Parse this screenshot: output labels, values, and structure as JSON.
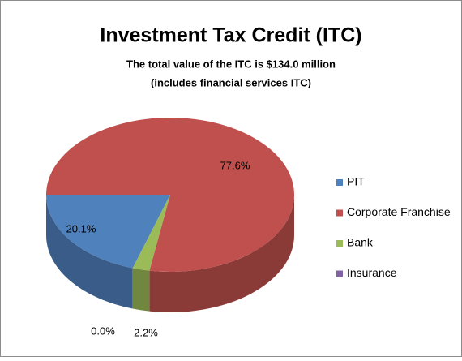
{
  "chart_data": {
    "type": "pie",
    "title": "Investment Tax Credit (ITC)",
    "subtitle": [
      "The total value of the ITC is $134.0 million",
      "(includes financial services ITC)"
    ],
    "categories": [
      "PIT",
      "Corporate Franchise",
      "Bank",
      "Insurance"
    ],
    "values": [
      20.1,
      77.6,
      2.2,
      0.0
    ],
    "value_labels": [
      "20.1%",
      "77.6%",
      "2.2%",
      "0.0%"
    ],
    "colors": [
      "#4f81bd",
      "#c0504d",
      "#9bbb59",
      "#8064a2"
    ],
    "legend": "right"
  }
}
